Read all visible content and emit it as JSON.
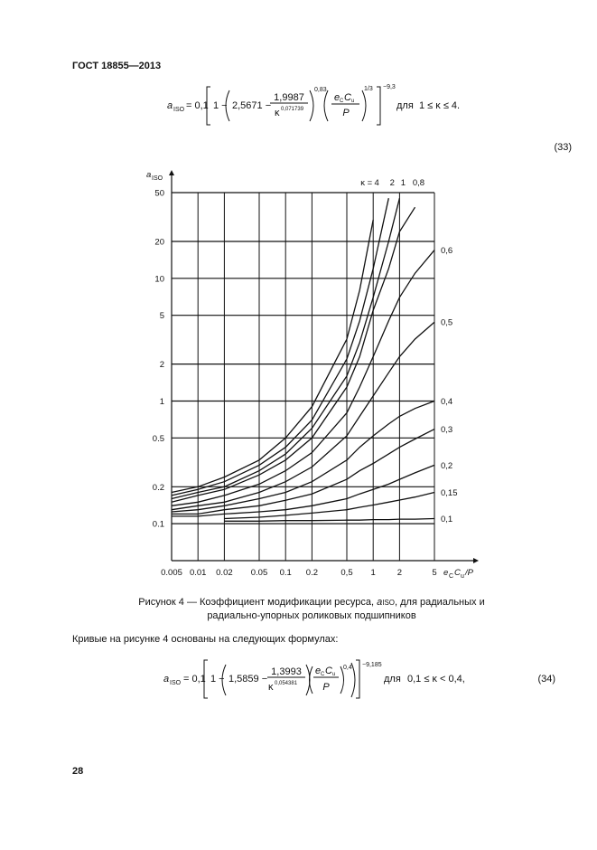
{
  "header": "ГОСТ 18855—2013",
  "formula_33": {
    "symbol": "a",
    "symbol_sub": "ISO",
    "eq": "= 0,1",
    "one_minus": "1 −",
    "const": "2,5671 −",
    "numerator": "1,9987",
    "kappa": "κ",
    "kappa_exp": "0,071739",
    "exp_inner": "0,83",
    "ratio_e": "e",
    "ratio_e_sub": "C",
    "ratio_c": "C",
    "ratio_c_sub": "u",
    "ratio_den": "P",
    "ratio_exp": "1/3",
    "outer_exp": "−9,3",
    "for": "для",
    "condition": "1 ≤ κ ≤ 4."
  },
  "equation_number_33": "(33)",
  "chart_data": {
    "type": "line",
    "y_label": [
      "a",
      "ISO"
    ],
    "x_label": [
      "e",
      "C",
      "C",
      "u",
      "/P"
    ],
    "kappa_label": "κ =",
    "x": [
      0.005,
      0.01,
      0.02,
      0.05,
      0.1,
      0.2,
      0.5,
      0.7,
      1,
      1.5,
      2,
      3,
      5
    ],
    "series": [
      {
        "name": "4",
        "color": "#111111",
        "values": [
          0.18,
          0.2,
          0.24,
          0.33,
          0.5,
          0.9,
          3.2,
          8,
          30,
          null,
          null,
          null,
          null
        ]
      },
      {
        "name": "2",
        "color": "#111111",
        "values": [
          0.17,
          0.19,
          0.22,
          0.3,
          0.42,
          0.7,
          2.2,
          4.5,
          12,
          45,
          null,
          null,
          null
        ]
      },
      {
        "name": "1",
        "color": "#111111",
        "values": [
          0.16,
          0.18,
          0.2,
          0.27,
          0.37,
          0.6,
          1.6,
          3,
          7,
          20,
          45,
          null,
          null
        ]
      },
      {
        "name": "0,8",
        "color": "#111111",
        "values": [
          0.15,
          0.17,
          0.19,
          0.25,
          0.33,
          0.5,
          1.3,
          2.3,
          5.5,
          12,
          24,
          38,
          null
        ]
      },
      {
        "name": "0,6",
        "color": "#111111",
        "values": [
          0.14,
          0.15,
          0.17,
          0.21,
          0.27,
          0.38,
          0.8,
          1.3,
          2.3,
          4.5,
          7,
          11,
          17
        ]
      },
      {
        "name": "0,5",
        "color": "#111111",
        "values": [
          0.13,
          0.14,
          0.15,
          0.18,
          0.22,
          0.29,
          0.52,
          0.75,
          1.1,
          1.7,
          2.3,
          3.2,
          4.4
        ]
      },
      {
        "name": "0,4",
        "color": "#111111",
        "values": [
          0.125,
          0.13,
          0.14,
          0.16,
          0.18,
          0.22,
          0.33,
          0.42,
          0.52,
          0.65,
          0.75,
          0.87,
          1.0
        ]
      },
      {
        "name": "0,3",
        "color": "#111111",
        "values": [
          0.12,
          0.12,
          0.13,
          0.14,
          0.155,
          0.175,
          0.23,
          0.27,
          0.31,
          0.37,
          0.42,
          0.49,
          0.59
        ]
      },
      {
        "name": "0,2",
        "color": "#111111",
        "values": [
          0.115,
          0.115,
          0.12,
          0.125,
          0.13,
          0.14,
          0.16,
          0.175,
          0.19,
          0.21,
          0.23,
          0.26,
          0.3
        ]
      },
      {
        "name": "0,15",
        "color": "#111111",
        "values": [
          null,
          null,
          0.11,
          0.113,
          0.117,
          0.122,
          0.13,
          0.136,
          0.142,
          0.15,
          0.156,
          0.165,
          0.18
        ]
      },
      {
        "name": "0,1",
        "color": "#111111",
        "values": [
          null,
          null,
          0.105,
          0.105,
          0.106,
          0.106,
          0.107,
          0.107,
          0.108,
          0.108,
          0.109,
          0.109,
          0.11
        ]
      }
    ],
    "xscale": "log",
    "yscale": "log",
    "grid": true,
    "xlim": [
      0.005,
      5
    ],
    "ylim": [
      0.05,
      50
    ],
    "xticks": [
      0.005,
      0.01,
      0.02,
      0.05,
      0.1,
      0.2,
      {
        "value": 0.5,
        "label": "0,5"
      },
      1,
      2,
      5
    ],
    "yticks": [
      0.1,
      0.2,
      0.5,
      1,
      2,
      5,
      10,
      20,
      50
    ]
  },
  "caption": {
    "prefix": "Рисунок 4 — Коэффициент модификации ресурса, ",
    "symbol": "a",
    "symbol_sub": "ISO",
    "suffix": ", для радиальных и",
    "line2": "радиально-упорных роликовых подшипников"
  },
  "paragraph": "Кривые на рисунке 4 основаны на следующих формулах:",
  "formula_34": {
    "symbol": "a",
    "symbol_sub": "ISO",
    "eq": "= 0,1",
    "one_minus": "1 −",
    "const": "1,5859 −",
    "numerator": "1,3993",
    "kappa": "κ",
    "kappa_exp": "0,054381",
    "ratio_e": "e",
    "ratio_e_sub": "C",
    "ratio_c": "C",
    "ratio_c_sub": "u",
    "ratio_den": "P",
    "ratio_exp": "0,4",
    "outer_exp": "−9,185",
    "for": "для",
    "condition": "0,1 ≤ κ < 0,4,"
  },
  "equation_number_34": "(34)",
  "page_number": "28"
}
